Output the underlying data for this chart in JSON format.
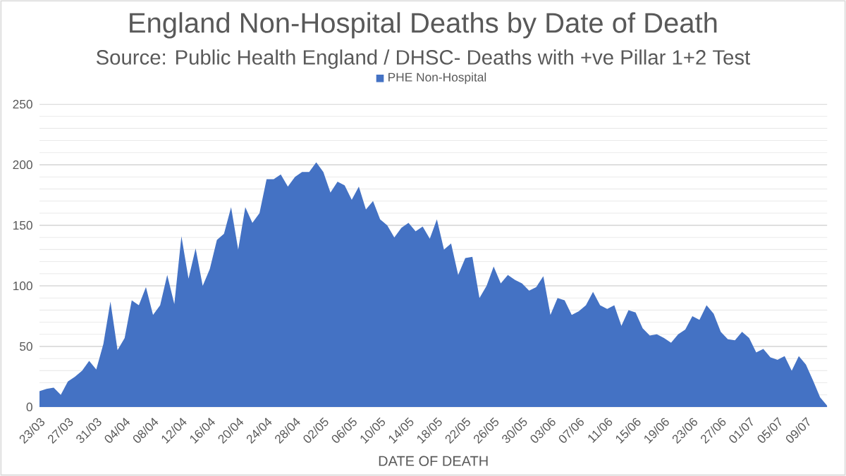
{
  "chart_data": {
    "type": "area",
    "title": "England Non-Hospital Deaths by Date of Death",
    "subtitle": "Source: Public Health England / DHSC- Deaths with +ve Pillar 1+2 Test",
    "xlabel": "DATE OF DEATH",
    "categories": [
      "23/03",
      null,
      null,
      null,
      "27/03",
      null,
      null,
      null,
      "31/03",
      null,
      null,
      null,
      "04/04",
      null,
      null,
      null,
      "08/04",
      null,
      null,
      null,
      "12/04",
      null,
      null,
      null,
      "16/04",
      null,
      null,
      null,
      "20/04",
      null,
      null,
      null,
      "24/04",
      null,
      null,
      null,
      "28/04",
      null,
      null,
      null,
      "02/05",
      null,
      null,
      null,
      "06/05",
      null,
      null,
      null,
      "10/05",
      null,
      null,
      null,
      "14/05",
      null,
      null,
      null,
      "18/05",
      null,
      null,
      null,
      "22/05",
      null,
      null,
      null,
      "26/05",
      null,
      null,
      null,
      "30/05",
      null,
      null,
      null,
      "03/06",
      null,
      null,
      null,
      "07/06",
      null,
      null,
      null,
      "11/06",
      null,
      null,
      null,
      "15/06",
      null,
      null,
      null,
      "19/06",
      null,
      null,
      null,
      "23/06",
      null,
      null,
      null,
      "27/06",
      null,
      null,
      null,
      "01/07",
      null,
      null,
      null,
      "05/07",
      null,
      null,
      null,
      "09/07",
      null,
      null,
      null
    ],
    "series": [
      {
        "name": "PHE Non-Hospital",
        "color": "#4472c4",
        "values": [
          13,
          15,
          16,
          10,
          21,
          25,
          30,
          38,
          31,
          52,
          87,
          47,
          57,
          88,
          84,
          99,
          76,
          84,
          109,
          85,
          141,
          106,
          131,
          100,
          114,
          138,
          143,
          165,
          130,
          165,
          152,
          160,
          188,
          188,
          192,
          182,
          190,
          194,
          194,
          202,
          194,
          177,
          186,
          183,
          171,
          182,
          163,
          170,
          155,
          150,
          140,
          148,
          152,
          145,
          149,
          139,
          155,
          130,
          135,
          109,
          123,
          124,
          90,
          100,
          116,
          102,
          109,
          105,
          102,
          96,
          99,
          108,
          76,
          90,
          88,
          76,
          79,
          84,
          95,
          84,
          81,
          84,
          67,
          80,
          78,
          65,
          59,
          60,
          57,
          53,
          60,
          64,
          75,
          72,
          84,
          77,
          62,
          56,
          55,
          62,
          57,
          45,
          48,
          41,
          39,
          42,
          30,
          42,
          35,
          22,
          8,
          1
        ]
      }
    ],
    "ylim": [
      0,
      250
    ],
    "yticks": [
      0,
      {
        "value": 10,
        "label": null
      },
      {
        "value": 20,
        "label": null
      },
      {
        "value": 30,
        "label": null
      },
      {
        "value": 40,
        "label": null
      },
      50,
      {
        "value": 60,
        "label": null
      },
      {
        "value": 70,
        "label": null
      },
      {
        "value": 80,
        "label": null
      },
      {
        "value": 90,
        "label": null
      },
      100,
      {
        "value": 110,
        "label": null
      },
      {
        "value": 120,
        "label": null
      },
      {
        "value": 130,
        "label": null
      },
      {
        "value": 140,
        "label": null
      },
      150,
      {
        "value": 160,
        "label": null
      },
      {
        "value": 170,
        "label": null
      },
      {
        "value": 180,
        "label": null
      },
      {
        "value": 190,
        "label": null
      },
      200,
      {
        "value": 210,
        "label": null
      },
      {
        "value": 220,
        "label": null
      },
      {
        "value": 230,
        "label": null
      },
      {
        "value": 240,
        "label": null
      },
      250
    ],
    "grid": "y",
    "legend": "top"
  }
}
